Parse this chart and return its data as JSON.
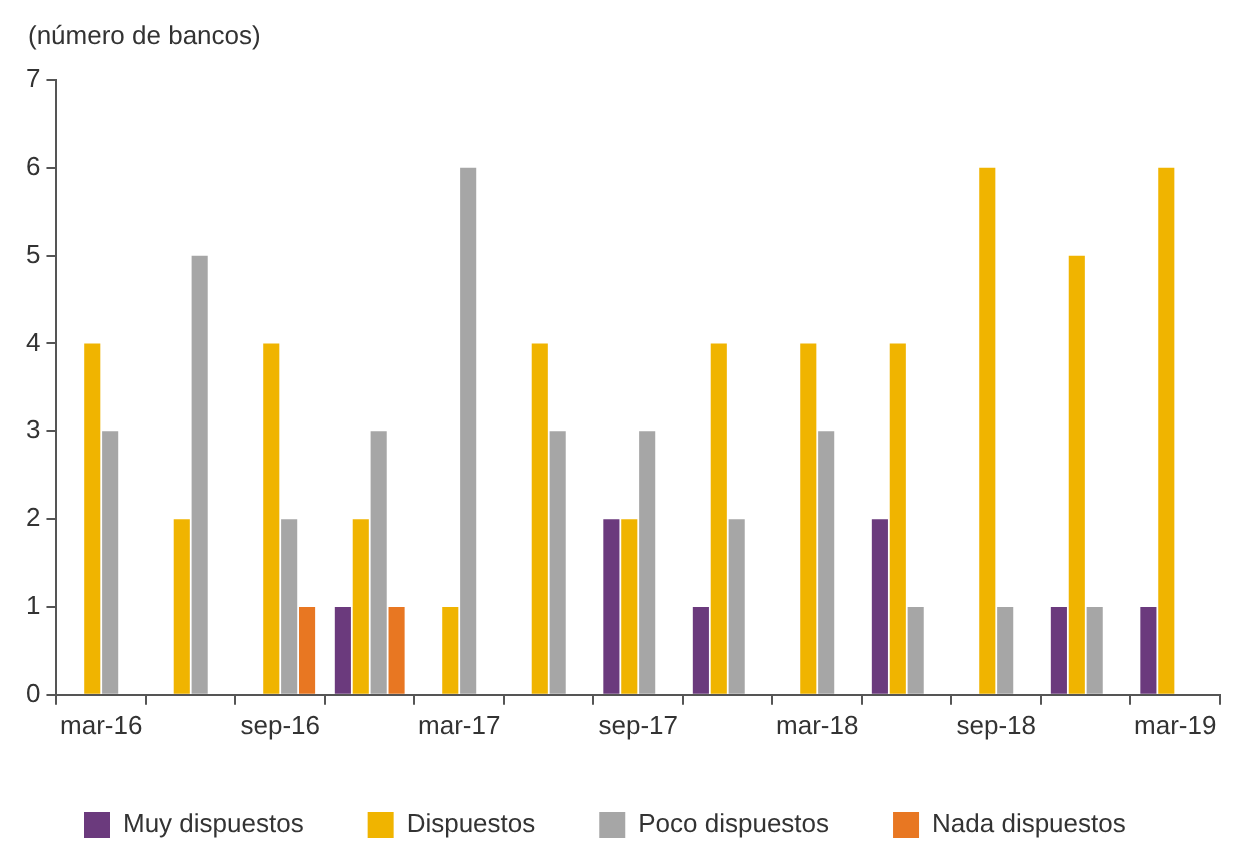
{
  "chart_data": {
    "type": "bar",
    "ylabel": "(número de bancos)",
    "categories": [
      "mar-16",
      null,
      "sep-16",
      null,
      "mar-17",
      null,
      "sep-17",
      null,
      "mar-18",
      null,
      "sep-18",
      null,
      "mar-19"
    ],
    "series": [
      {
        "name": "Muy dispuestos",
        "color": "#6b3a7d",
        "values": [
          0,
          0,
          0,
          1,
          0,
          0,
          2,
          1,
          0,
          2,
          0,
          1,
          1
        ]
      },
      {
        "name": "Dispuestos",
        "color": "#f0b400",
        "values": [
          4,
          2,
          4,
          2,
          1,
          4,
          2,
          4,
          4,
          4,
          6,
          5,
          6
        ]
      },
      {
        "name": "Poco dispuestos",
        "color": "#a6a6a6",
        "values": [
          3,
          5,
          2,
          3,
          6,
          3,
          3,
          2,
          3,
          1,
          1,
          1,
          0
        ]
      },
      {
        "name": "Nada dispuestos",
        "color": "#e87722",
        "values": [
          0,
          0,
          1,
          1,
          0,
          0,
          0,
          0,
          0,
          0,
          0,
          0,
          0
        ]
      }
    ],
    "ylim": [
      0,
      7
    ],
    "yticks": [
      0,
      1,
      2,
      3,
      4,
      5,
      6,
      7
    ],
    "grid": false,
    "legend": "bottom"
  }
}
